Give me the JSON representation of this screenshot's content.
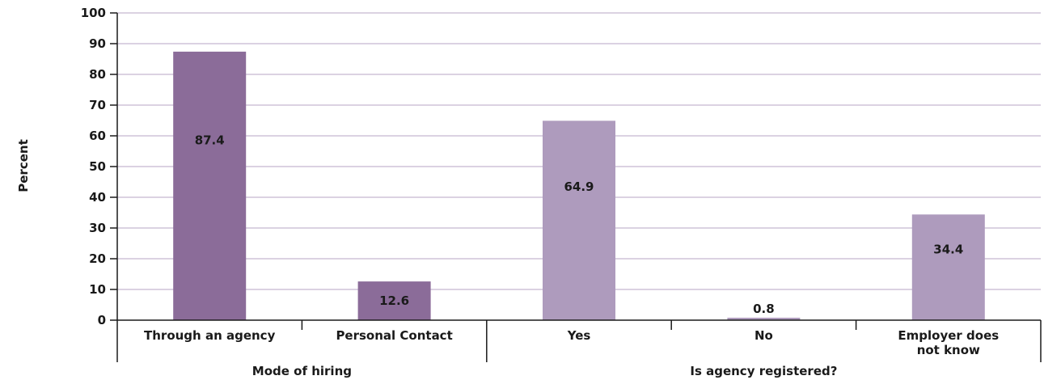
{
  "chart_data": {
    "type": "bar",
    "title": "",
    "xlabel": "",
    "ylabel": "Percent",
    "ylim": [
      0,
      100
    ],
    "yticks": [
      0,
      10,
      20,
      30,
      40,
      50,
      60,
      70,
      80,
      90,
      100
    ],
    "grid": true,
    "categories": [
      {
        "label_lines": [
          "Through an agency"
        ],
        "value": 87.4,
        "display": "87.4",
        "group": 0,
        "color": "#8b6c99"
      },
      {
        "label_lines": [
          "Personal Contact"
        ],
        "value": 12.6,
        "display": "12.6",
        "group": 0,
        "color": "#8b6c99"
      },
      {
        "label_lines": [
          "Yes"
        ],
        "value": 64.9,
        "display": "64.9",
        "group": 1,
        "color": "#ae9bbd"
      },
      {
        "label_lines": [
          "No"
        ],
        "value": 0.8,
        "display": "0.8",
        "group": 1,
        "color": "#ae9bbd"
      },
      {
        "label_lines": [
          "Employer does",
          "not know"
        ],
        "value": 34.4,
        "display": "34.4",
        "group": 1,
        "color": "#ae9bbd"
      }
    ],
    "groups": [
      {
        "label": "Mode of hiring"
      },
      {
        "label": "Is agency registered?"
      }
    ]
  },
  "colors": {
    "grid": "#b7a6c6",
    "axis": "#1a1a1a",
    "text": "#1a1a1a"
  }
}
